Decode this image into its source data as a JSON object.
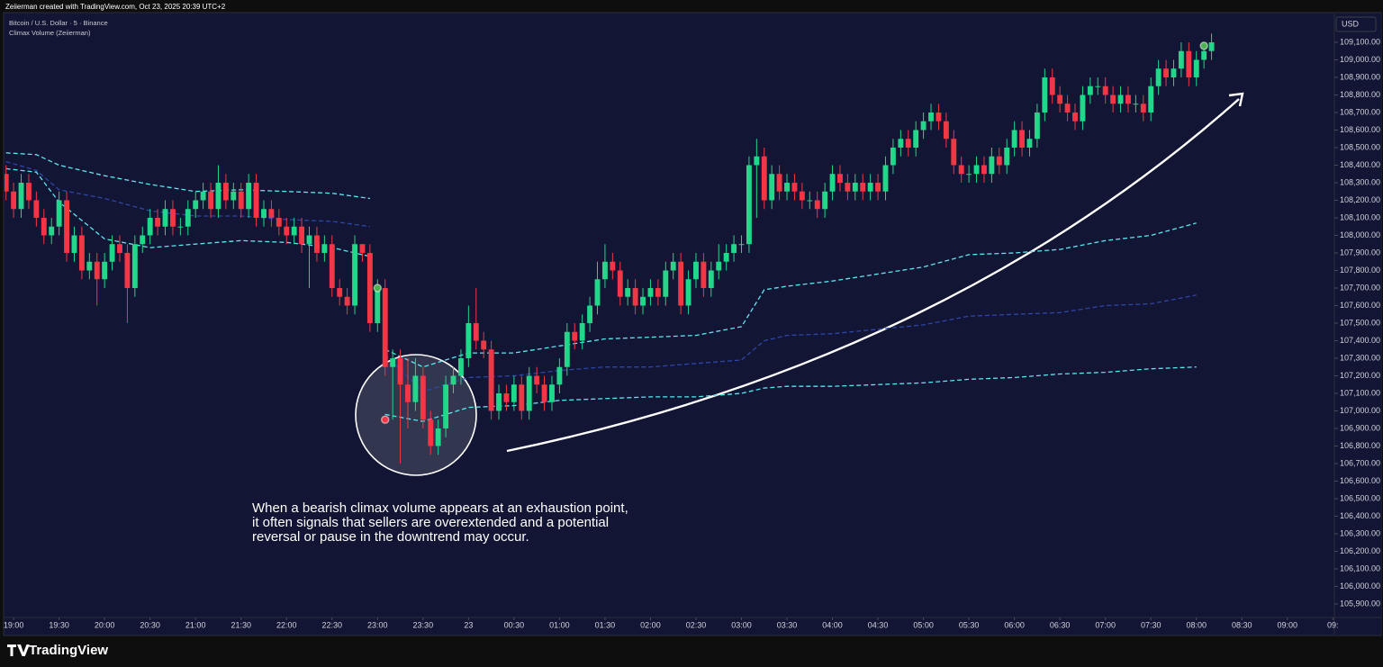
{
  "header": {
    "text": "Zeiierman created with TradingView.com, Oct 23, 2025 20:39 UTC+2"
  },
  "footer": {
    "brand": "TradingView"
  },
  "chart_data": {
    "type": "candlestick",
    "title": "Bitcoin / U.S. Dollar · 5 · Binance",
    "subtitle": "Climax Volume (Zeiierman)",
    "currency": "USD",
    "annotation": [
      "When a bearish climax volume appears at an exhaustion point,",
      "it often signals that sellers are overextended and a potential",
      "reversal or pause in the downtrend may occur."
    ],
    "up_color": "#22d68a",
    "down_color": "#f23645",
    "grid": false,
    "xlim": [
      "18:54",
      "09:31"
    ],
    "ylim": [
      105823,
      109264
    ],
    "x": [
      "18:55",
      "19:00",
      "19:05",
      "19:10",
      "19:15",
      "19:20",
      "19:25",
      "19:30",
      "19:35",
      "19:40",
      "19:45",
      "19:50",
      "19:55",
      "20:00",
      "20:05",
      "20:10",
      "20:15",
      "20:20",
      "20:25",
      "20:30",
      "20:35",
      "20:40",
      "20:45",
      "20:50",
      "20:55",
      "21:00",
      "21:05",
      "21:10",
      "21:15",
      "21:20",
      "21:25",
      "21:30",
      "21:35",
      "21:40",
      "21:45",
      "21:50",
      "21:55",
      "22:00",
      "22:05",
      "22:10",
      "22:15",
      "22:20",
      "22:25",
      "22:30",
      "22:35",
      "22:40",
      "22:45",
      "22:50",
      "22:55",
      "23:00",
      "23:05",
      "23:10",
      "23:15",
      "23:20",
      "23:25",
      "23:30",
      "23:35",
      "23:40",
      "23:45",
      "23:50",
      "23:55",
      "00:00",
      "00:05",
      "00:10",
      "00:15",
      "00:20",
      "00:25",
      "00:30",
      "00:35",
      "00:40",
      "00:45",
      "00:50",
      "00:55",
      "01:00",
      "01:05",
      "01:10",
      "01:15",
      "01:20",
      "01:25",
      "01:30",
      "01:35",
      "01:40",
      "01:45",
      "01:50",
      "01:55",
      "02:00",
      "02:05",
      "02:10",
      "02:15",
      "02:20",
      "02:25",
      "02:30",
      "02:35",
      "02:40",
      "02:45",
      "02:50",
      "02:55",
      "03:00",
      "03:05",
      "03:10",
      "03:15",
      "03:20",
      "03:25",
      "03:30",
      "03:35",
      "03:40",
      "03:45",
      "03:50",
      "03:55",
      "04:00",
      "04:05",
      "04:10",
      "04:15",
      "04:20",
      "04:25",
      "04:30",
      "04:35",
      "04:40",
      "04:45",
      "04:50",
      "04:55",
      "05:00",
      "05:05",
      "05:10",
      "05:15",
      "05:20",
      "05:25",
      "05:30",
      "05:35",
      "05:40",
      "05:45",
      "05:50",
      "05:55",
      "06:00",
      "06:05",
      "06:10",
      "06:15",
      "06:20",
      "06:25",
      "06:30",
      "06:35",
      "06:40",
      "06:45",
      "06:50",
      "06:55",
      "07:00",
      "07:05",
      "07:10",
      "07:15",
      "07:20",
      "07:25",
      "07:30",
      "07:35",
      "07:40",
      "07:45",
      "07:50",
      "07:55",
      "08:00",
      "08:05",
      "08:10"
    ],
    "open": [
      108350,
      108250,
      108150,
      108300,
      108200,
      108100,
      108000,
      108050,
      108200,
      107900,
      108000,
      107800,
      107850,
      107750,
      107850,
      107950,
      107900,
      107700,
      107950,
      108000,
      108100,
      108050,
      108150,
      108050,
      108050,
      108150,
      108200,
      108250,
      108150,
      108300,
      108200,
      108250,
      108150,
      108300,
      108100,
      108150,
      108100,
      108050,
      108000,
      108050,
      107950,
      108000,
      107900,
      107950,
      107700,
      107650,
      107600,
      107950,
      107900,
      107500,
      107700,
      107250,
      107300,
      107150,
      107050,
      107200,
      106950,
      106800,
      106900,
      107150,
      107200,
      107300,
      107500,
      107400,
      107350,
      107000,
      107100,
      107050,
      107150,
      107000,
      107200,
      107150,
      107050,
      107150,
      107250,
      107450,
      107400,
      107500,
      107600,
      107750,
      107850,
      107800,
      107650,
      107700,
      107600,
      107650,
      107700,
      107650,
      107800,
      107850,
      107600,
      107750,
      107850,
      107700,
      107800,
      107850,
      107900,
      107950,
      107950,
      108400,
      108450,
      108200,
      108350,
      108250,
      108300,
      108250,
      108200,
      108200,
      108150,
      108250,
      108350,
      108300,
      108250,
      108300,
      108250,
      108300,
      108250,
      108400,
      108500,
      108550,
      108500,
      108600,
      108650,
      108700,
      108650,
      108550,
      108400,
      108350,
      108350,
      108400,
      108350,
      108450,
      108400,
      108500,
      108600,
      108500,
      108550,
      108700,
      108900,
      108800,
      108750,
      108700,
      108650,
      108800,
      108850,
      108850,
      108800,
      108750,
      108800,
      108750,
      108750,
      108700,
      108850,
      108950,
      108900,
      108950,
      109050,
      108900,
      109000,
      109050
    ],
    "high": [
      108400,
      108300,
      108350,
      108350,
      108250,
      108150,
      108100,
      108250,
      108250,
      108050,
      108050,
      107900,
      107900,
      107900,
      108000,
      108000,
      107950,
      108000,
      108050,
      108150,
      108150,
      108200,
      108200,
      108100,
      108200,
      108250,
      108300,
      108300,
      108400,
      108350,
      108300,
      108300,
      108350,
      108350,
      108200,
      108200,
      108150,
      108100,
      108100,
      108100,
      108050,
      108050,
      108000,
      108000,
      107750,
      107700,
      108000,
      107950,
      107950,
      107750,
      107750,
      107350,
      107350,
      107300,
      107300,
      107250,
      107000,
      106950,
      107200,
      107250,
      107350,
      107600,
      107700,
      107450,
      107400,
      107150,
      107150,
      107200,
      107200,
      107250,
      107250,
      107200,
      107200,
      107300,
      107500,
      107500,
      107550,
      107650,
      107850,
      107950,
      107900,
      107850,
      107750,
      107750,
      107700,
      107750,
      107750,
      107850,
      107900,
      107900,
      107800,
      107900,
      107900,
      107850,
      107950,
      107950,
      108000,
      108000,
      108450,
      108550,
      108500,
      108400,
      108400,
      108350,
      108350,
      108300,
      108250,
      108250,
      108300,
      108400,
      108400,
      108350,
      108350,
      108350,
      108350,
      108350,
      108450,
      108550,
      108600,
      108600,
      108650,
      108700,
      108750,
      108750,
      108700,
      108600,
      108450,
      108400,
      108450,
      108450,
      108500,
      108500,
      108550,
      108650,
      108650,
      108600,
      108750,
      108950,
      108950,
      108850,
      108800,
      108750,
      108850,
      108900,
      108900,
      108900,
      108850,
      108850,
      108850,
      108800,
      108800,
      108900,
      109000,
      109000,
      109000,
      109100,
      109100,
      109050,
      109100,
      109150
    ],
    "low": [
      108200,
      108100,
      108100,
      108150,
      108050,
      107950,
      107950,
      108000,
      107850,
      107850,
      107750,
      107750,
      107600,
      107700,
      107800,
      107850,
      107500,
      107650,
      107900,
      107950,
      108000,
      108000,
      108000,
      108000,
      108000,
      108100,
      108150,
      108100,
      108100,
      108150,
      108150,
      108100,
      108100,
      108050,
      108050,
      108050,
      108000,
      107950,
      107950,
      107900,
      107700,
      107850,
      107850,
      107650,
      107600,
      107550,
      107550,
      107850,
      107450,
      107450,
      107200,
      106950,
      106700,
      106900,
      107000,
      106900,
      106750,
      106750,
      106850,
      107100,
      107150,
      107250,
      107350,
      107300,
      106950,
      106950,
      107000,
      107000,
      106950,
      106950,
      107100,
      107000,
      107000,
      107100,
      107200,
      107350,
      107350,
      107450,
      107550,
      107700,
      107750,
      107600,
      107600,
      107550,
      107550,
      107600,
      107600,
      107600,
      107750,
      107550,
      107550,
      107700,
      107650,
      107650,
      107750,
      107800,
      107850,
      107900,
      107900,
      108100,
      108150,
      108150,
      108200,
      108200,
      108200,
      108150,
      108150,
      108100,
      108100,
      108200,
      108250,
      108200,
      108200,
      108200,
      108200,
      108200,
      108200,
      108350,
      108450,
      108450,
      108450,
      108550,
      108600,
      108600,
      108500,
      108350,
      108300,
      108300,
      108300,
      108300,
      108300,
      108350,
      108350,
      108450,
      108450,
      108450,
      108500,
      108650,
      108750,
      108700,
      108650,
      108600,
      108600,
      108750,
      108800,
      108750,
      108700,
      108700,
      108700,
      108700,
      108650,
      108650,
      108800,
      108850,
      108850,
      108900,
      108850,
      108850,
      108950,
      109000
    ],
    "close": [
      108250,
      108150,
      108300,
      108200,
      108100,
      108000,
      108050,
      108200,
      107900,
      108000,
      107800,
      107850,
      107750,
      107850,
      107950,
      107900,
      107700,
      107950,
      108000,
      108100,
      108050,
      108150,
      108050,
      108050,
      108150,
      108200,
      108250,
      108150,
      108300,
      108200,
      108250,
      108150,
      108300,
      108100,
      108150,
      108100,
      108050,
      108000,
      108050,
      107950,
      108000,
      107900,
      107950,
      107700,
      107650,
      107600,
      107950,
      107900,
      107500,
      107700,
      107250,
      107300,
      107150,
      107050,
      107200,
      106950,
      106800,
      106900,
      107150,
      107200,
      107300,
      107500,
      107400,
      107350,
      107000,
      107100,
      107050,
      107150,
      107000,
      107200,
      107150,
      107050,
      107150,
      107250,
      107450,
      107400,
      107500,
      107600,
      107750,
      107850,
      107800,
      107650,
      107700,
      107600,
      107650,
      107700,
      107650,
      107800,
      107850,
      107600,
      107750,
      107850,
      107700,
      107800,
      107850,
      107900,
      107950,
      107950,
      108400,
      108450,
      108200,
      108350,
      108250,
      108300,
      108250,
      108200,
      108200,
      108150,
      108250,
      108350,
      108300,
      108250,
      108300,
      108250,
      108300,
      108250,
      108400,
      108500,
      108550,
      108500,
      108600,
      108650,
      108700,
      108650,
      108550,
      108400,
      108350,
      108350,
      108400,
      108350,
      108450,
      108400,
      108500,
      108600,
      108500,
      108550,
      108700,
      108900,
      108800,
      108750,
      108700,
      108650,
      108800,
      108850,
      108850,
      108800,
      108750,
      108800,
      108750,
      108750,
      108700,
      108850,
      108950,
      108900,
      108950,
      109050,
      108900,
      109000,
      109050,
      109100
    ],
    "bands": {
      "x": [
        "18:55",
        "19:15",
        "19:30",
        "20:00",
        "20:30",
        "21:00",
        "21:30",
        "22:00",
        "22:30",
        "22:55",
        "23:00",
        "23:05",
        "23:30",
        "00:00",
        "00:30",
        "01:00",
        "01:30",
        "02:00",
        "02:30",
        "03:00",
        "03:15",
        "03:30",
        "04:00",
        "05:00",
        "05:30",
        "06:00",
        "06:30",
        "07:00",
        "07:30",
        "08:00"
      ],
      "series": [
        {
          "color": "#5ee6f0",
          "values": [
            108470,
            108460,
            108400,
            108340,
            108290,
            108250,
            108260,
            108250,
            108240,
            108210,
            null,
            107350,
            107250,
            107330,
            107330,
            107370,
            107410,
            107420,
            107430,
            107480,
            107690,
            107710,
            107740,
            107820,
            107890,
            107900,
            107920,
            107970,
            108000,
            108070
          ]
        },
        {
          "color": "#2f46a8",
          "values": [
            108420,
            108370,
            108260,
            108210,
            108140,
            108110,
            108110,
            108090,
            108080,
            108050,
            null,
            107320,
            107110,
            107190,
            107200,
            107230,
            107250,
            107250,
            107270,
            107290,
            107400,
            107430,
            107440,
            107490,
            107540,
            107550,
            107560,
            107600,
            107610,
            107660
          ]
        },
        {
          "color": "#5ee6f0",
          "values": [
            108380,
            108360,
            108190,
            107980,
            107930,
            107950,
            107970,
            107960,
            107930,
            107880,
            null,
            106980,
            106940,
            107020,
            107030,
            107060,
            107070,
            107080,
            107080,
            107100,
            107130,
            107140,
            107140,
            107160,
            107180,
            107190,
            107210,
            107220,
            107240,
            107250
          ]
        }
      ]
    },
    "markers": [
      {
        "x": "23:00",
        "value": 107700,
        "color": "#4caf50"
      },
      {
        "x": "23:05",
        "value": 106950,
        "color": "#f23645"
      },
      {
        "x": "08:05",
        "value": 109080,
        "color": "#4caf50"
      }
    ],
    "xticks": [
      "19:00",
      "19:30",
      "20:00",
      "20:30",
      "21:00",
      "21:30",
      "22:00",
      "22:30",
      "23:00",
      "23:30",
      {
        "value": "00:00",
        "label": "23"
      },
      "00:30",
      "01:00",
      "01:30",
      "02:00",
      "02:30",
      "03:00",
      "03:30",
      "04:00",
      "04:30",
      "05:00",
      "05:30",
      "06:00",
      "06:30",
      "07:00",
      "07:30",
      "08:00",
      "08:30",
      "09:00",
      {
        "value": "09:30",
        "label": "09:"
      }
    ],
    "yticks": [
      {
        "value": 105900,
        "label": "105,900.00"
      },
      {
        "value": 106000,
        "label": "106,000.00"
      },
      {
        "value": 106100,
        "label": "106,100.00"
      },
      {
        "value": 106200,
        "label": "106,200.00"
      },
      {
        "value": 106300,
        "label": "106,300.00"
      },
      {
        "value": 106400,
        "label": "106,400.00"
      },
      {
        "value": 106500,
        "label": "106,500.00"
      },
      {
        "value": 106600,
        "label": "106,600.00"
      },
      {
        "value": 106700,
        "label": "106,700.00"
      },
      {
        "value": 106800,
        "label": "106,800.00"
      },
      {
        "value": 106900,
        "label": "106,900.00"
      },
      {
        "value": 107000,
        "label": "107,000.00"
      },
      {
        "value": 107100,
        "label": "107,100.00"
      },
      {
        "value": 107200,
        "label": "107,200.00"
      },
      {
        "value": 107300,
        "label": "107,300.00"
      },
      {
        "value": 107400,
        "label": "107,400.00"
      },
      {
        "value": 107500,
        "label": "107,500.00"
      },
      {
        "value": 107600,
        "label": "107,600.00"
      },
      {
        "value": 107700,
        "label": "107,700.00"
      },
      {
        "value": 107800,
        "label": "107,800.00"
      },
      {
        "value": 107900,
        "label": "107,900.00"
      },
      {
        "value": 108000,
        "label": "108,000.00"
      },
      {
        "value": 108100,
        "label": "108,100.00"
      },
      {
        "value": 108200,
        "label": "108,200.00"
      },
      {
        "value": 108300,
        "label": "108,300.00"
      },
      {
        "value": 108400,
        "label": "108,400.00"
      },
      {
        "value": 108500,
        "label": "108,500.00"
      },
      {
        "value": 108600,
        "label": "108,600.00"
      },
      {
        "value": 108700,
        "label": "108,700.00"
      },
      {
        "value": 108800,
        "label": "108,800.00"
      },
      {
        "value": 108900,
        "label": "108,900.00"
      },
      {
        "value": 109000,
        "label": "109,000.00"
      },
      {
        "value": 109100,
        "label": "109,100.00"
      }
    ]
  }
}
